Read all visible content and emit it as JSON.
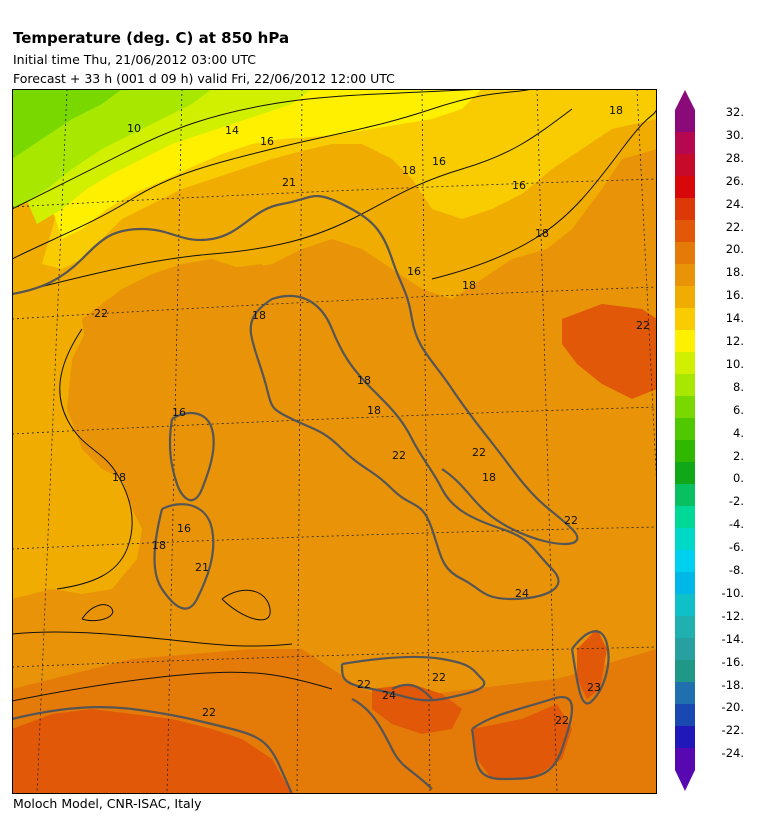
{
  "header": {
    "title": "Temperature (deg. C) at 850 hPa",
    "initial_time": "Initial time  Thu, 21/06/2012  03:00 UTC",
    "forecast": "Forecast  +  33 h  (001 d 09 h)  valid Fri, 22/06/2012 12:00 UTC"
  },
  "footer": {
    "credit": "Moloch Model, CNR-ISAC, Italy"
  },
  "colorbar": {
    "labels": [
      "32.",
      "30.",
      "28.",
      "26.",
      "24.",
      "22.",
      "20.",
      "18.",
      "16.",
      "14.",
      "12.",
      "10.",
      "8.",
      "6.",
      "4.",
      "2.",
      "0.",
      "-2.",
      "-4.",
      "-6.",
      "-8.",
      "-10.",
      "-12.",
      "-14.",
      "-16.",
      "-18.",
      "-20.",
      "-22.",
      "-24."
    ],
    "colors": [
      "#8b0a7a",
      "#b5084e",
      "#c80a2a",
      "#d8080a",
      "#dc3808",
      "#e05808",
      "#e47a08",
      "#e99408",
      "#f0ac00",
      "#f8cc00",
      "#fff000",
      "#d0f000",
      "#a8e800",
      "#78d800",
      "#50c800",
      "#30b800",
      "#10a818",
      "#08c060",
      "#00d898",
      "#00d8c8",
      "#00d0f0",
      "#00b8e8",
      "#10c0c8",
      "#20b0b0",
      "#28a0a0",
      "#209888",
      "#2070b0",
      "#1848b0",
      "#2018b8",
      "#5808b0"
    ]
  },
  "contour_labels": [
    "10",
    "14",
    "16",
    "18",
    "16",
    "21",
    "18",
    "16",
    "18",
    "16",
    "18",
    "22",
    "22",
    "16",
    "18",
    "18",
    "22",
    "18",
    "22",
    "18",
    "16",
    "18",
    "21",
    "18",
    "22",
    "24",
    "23",
    "22",
    "22",
    "22",
    "24",
    "22"
  ]
}
